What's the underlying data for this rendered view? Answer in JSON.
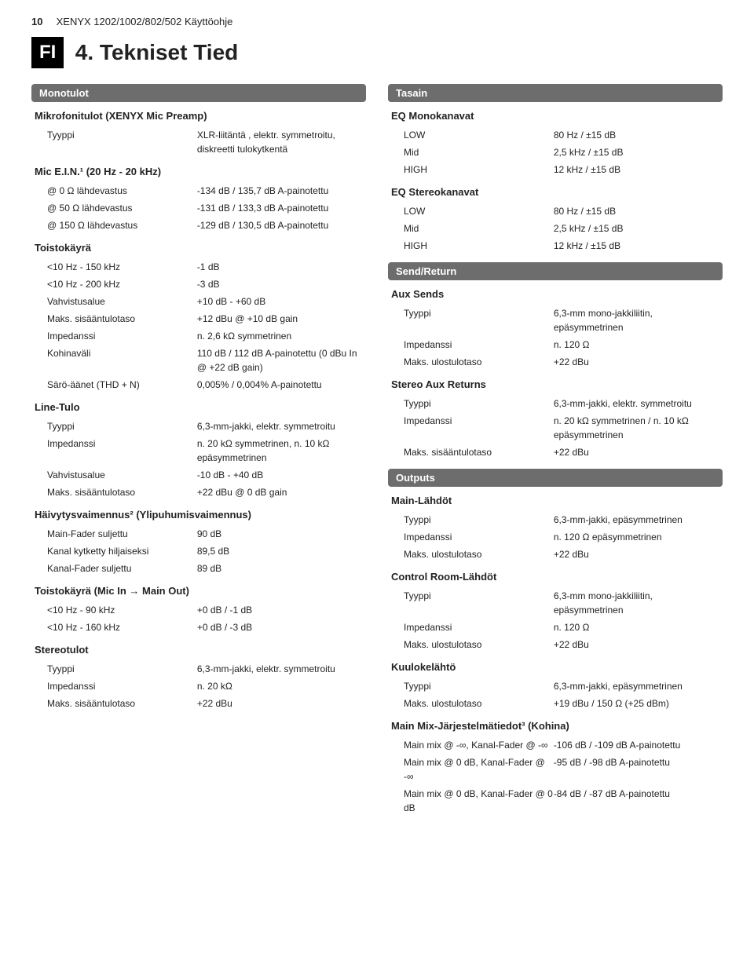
{
  "header": {
    "pageNum": "10",
    "docTitle": "XENYX 1202/1002/802/502 Käyttöohje",
    "lang": "FI",
    "title": "4.  Tekniset Tied"
  },
  "left": {
    "monotulot": {
      "bar": "Monotulot",
      "micPreamp": "Mikrofonitulot (XENYX Mic Preamp)",
      "rows1": [
        {
          "l": "Tyyppi",
          "v": "XLR-liitäntä , elektr. symmetroitu, diskreetti tulokytkentä"
        }
      ],
      "micEin": "Mic E.I.N.¹ (20 Hz - 20 kHz)",
      "rows2": [
        {
          "l": "@ 0 Ω lähdevastus",
          "v": "-134 dB / 135,7 dB A-painotettu"
        },
        {
          "l": "@ 50 Ω lähdevastus",
          "v": "-131 dB / 133,3 dB A-painotettu"
        },
        {
          "l": "@ 150 Ω lähdevastus",
          "v": "-129 dB / 130,5 dB A-painotettu"
        }
      ],
      "toisto": "Toistokäyrä",
      "rows3": [
        {
          "l": "<10 Hz - 150 kHz",
          "v": "-1 dB"
        },
        {
          "l": "<10 Hz - 200 kHz",
          "v": "-3 dB"
        },
        {
          "l": "Vahvistusalue",
          "v": "+10 dB - +60 dB"
        },
        {
          "l": "Maks. sisääntulotaso",
          "v": "+12 dBu @ +10 dB gain"
        },
        {
          "l": "Impedanssi",
          "v": "n. 2,6 kΩ symmetrinen"
        },
        {
          "l": "Kohinaväli",
          "v": "110 dB / 112 dB A-painotettu (0 dBu In @ +22 dB gain)"
        },
        {
          "l": "Särö-äänet (THD + N)",
          "v": "0,005% / 0,004% A-painotettu"
        }
      ],
      "lineTulo": "Line-Tulo",
      "rows4": [
        {
          "l": "Tyyppi",
          "v": "6,3-mm-jakki, elektr. symmetroitu"
        },
        {
          "l": "Impedanssi",
          "v": "n. 20 kΩ symmetrinen, n. 10 kΩ epäsymmetrinen"
        },
        {
          "l": "Vahvistusalue",
          "v": "-10 dB - +40 dB"
        },
        {
          "l": "Maks. sisääntulotaso",
          "v": "+22 dBu @ 0 dB gain"
        }
      ],
      "haivytys": "Häivytysvaimennus²  (Ylipuhumisvaimennus)",
      "rows5": [
        {
          "l": "Main-Fader suljettu",
          "v": "90 dB"
        },
        {
          "l": "Kanal kytketty hiljaiseksi",
          "v": "89,5 dB"
        },
        {
          "l": "Kanal-Fader suljettu",
          "v": "89 dB"
        }
      ],
      "toistoMic": "Toistokäyrä (Mic In → Main Out)",
      "rows6": [
        {
          "l": "<10 Hz - 90 kHz",
          "v": "+0 dB / -1 dB"
        },
        {
          "l": "<10 Hz - 160 kHz",
          "v": "+0 dB / -3 dB"
        }
      ],
      "stereo": "Stereotulot",
      "rows7": [
        {
          "l": "Tyyppi",
          "v": "6,3-mm-jakki, elektr. symmetroitu"
        },
        {
          "l": "Impedanssi",
          "v": "n. 20 kΩ"
        },
        {
          "l": "Maks. sisääntulotaso",
          "v": "+22 dBu"
        }
      ]
    }
  },
  "right": {
    "tasain": {
      "bar": "Tasain",
      "eqMono": "EQ Monokanavat",
      "rows1": [
        {
          "l": "LOW",
          "v": "80 Hz / ±15 dB"
        },
        {
          "l": "Mid",
          "v": "2,5 kHz / ±15 dB"
        },
        {
          "l": "HIGH",
          "v": "12 kHz / ±15 dB"
        }
      ],
      "eqStereo": "EQ Stereokanavat",
      "rows2": [
        {
          "l": "LOW",
          "v": "80 Hz / ±15 dB"
        },
        {
          "l": "Mid",
          "v": "2,5 kHz / ±15 dB"
        },
        {
          "l": "HIGH",
          "v": "12 kHz / ±15 dB"
        }
      ]
    },
    "sendReturn": {
      "bar": "Send/Return",
      "auxSends": "Aux Sends",
      "rows1": [
        {
          "l": "Tyyppi",
          "v": "6,3-mm mono-jakkiliitin, epäsymmetrinen"
        },
        {
          "l": "Impedanssi",
          "v": "n. 120 Ω"
        },
        {
          "l": "Maks. ulostulotaso",
          "v": "+22 dBu"
        }
      ],
      "stereoAux": "Stereo Aux Returns",
      "rows2": [
        {
          "l": "Tyyppi",
          "v": "6,3-mm-jakki, elektr. symmetroitu"
        },
        {
          "l": "Impedanssi",
          "v": "n. 20 kΩ symmetrinen / n. 10 kΩ epäsymmetrinen"
        },
        {
          "l": "Maks. sisääntulotaso",
          "v": "+22 dBu"
        }
      ]
    },
    "outputs": {
      "bar": "Outputs",
      "mainLahdot": "Main-Lähdöt",
      "rows1": [
        {
          "l": "Tyyppi",
          "v": "6,3-mm-jakki, epäsymmetrinen"
        },
        {
          "l": "Impedanssi",
          "v": "n. 120 Ω epäsymmetrinen"
        },
        {
          "l": "Maks. ulostulotaso",
          "v": "+22 dBu"
        }
      ],
      "ctrlRoom": "Control Room-Lähdöt",
      "rows2": [
        {
          "l": "Tyyppi",
          "v": "6,3-mm mono-jakkiliitin, epäsymmetrinen"
        },
        {
          "l": "Impedanssi",
          "v": "n. 120 Ω"
        },
        {
          "l": "Maks. ulostulotaso",
          "v": "+22 dBu"
        }
      ],
      "kuuloke": "Kuulokelähtö",
      "rows3": [
        {
          "l": "Tyyppi",
          "v": "6,3-mm-jakki, epäsymmetrinen"
        },
        {
          "l": "Maks. ulostulotaso",
          "v": "+19 dBu / 150 Ω (+25 dBm)"
        }
      ],
      "mainMix": "Main Mix-Järjestelmätiedot³ (Kohina)",
      "rows4": [
        {
          "l": "Main mix @ -∞, Kanal-Fader @ -∞",
          "v": "-106 dB / -109 dB A-painotettu"
        },
        {
          "l": "Main mix @ 0 dB, Kanal-Fader @ -∞",
          "v": "-95 dB / -98 dB A-painotettu"
        },
        {
          "l": "Main mix @ 0 dB, Kanal-Fader @ 0 dB",
          "v": "-84 dB / -87 dB A-painotettu"
        }
      ]
    }
  }
}
